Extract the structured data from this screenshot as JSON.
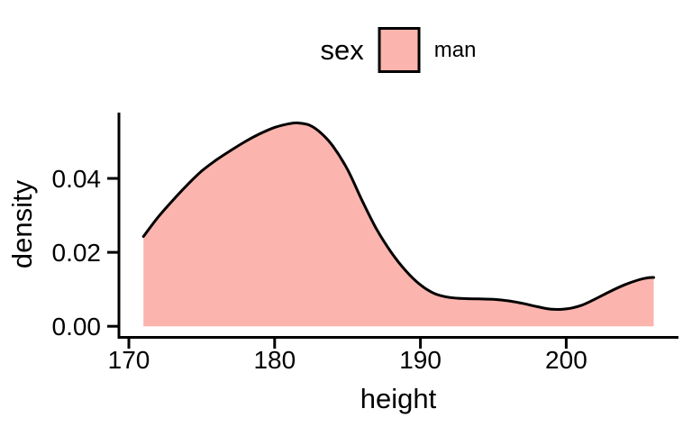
{
  "figure": {
    "background": "#ffffff",
    "axis_color": "#000000"
  },
  "chart_data": {
    "type": "area",
    "subtype": "density",
    "title": "",
    "xlabel": "height",
    "ylabel": "density",
    "grid": "off",
    "panel_background": "#ffffff",
    "legend": {
      "position": "top",
      "title": "sex",
      "entries": [
        {
          "label": "man",
          "fill": "#FBB4AE",
          "outline": "#000000"
        }
      ]
    },
    "x_ticks": [
      {
        "label": "170",
        "value": 170
      },
      {
        "label": "180",
        "value": 180
      },
      {
        "label": "190",
        "value": 190
      },
      {
        "label": "200",
        "value": 200
      }
    ],
    "y_ticks": [
      {
        "label": "0.00",
        "value": 0.0
      },
      {
        "label": "0.02",
        "value": 0.02
      },
      {
        "label": "0.04",
        "value": 0.04
      }
    ],
    "xlim": [
      169.32,
      207.7
    ],
    "ylim": [
      -0.003,
      0.0578
    ],
    "series": [
      {
        "name": "man",
        "line_color": "#000000",
        "fill_color": "#FBB4AE",
        "baseline": 0,
        "points": [
          [
            171.0,
            0.0243
          ],
          [
            172.0,
            0.0295
          ],
          [
            173.0,
            0.034
          ],
          [
            174.0,
            0.0382
          ],
          [
            175.0,
            0.042
          ],
          [
            176.0,
            0.045
          ],
          [
            177.0,
            0.0476
          ],
          [
            178.0,
            0.05
          ],
          [
            179.0,
            0.0521
          ],
          [
            180.0,
            0.0538
          ],
          [
            181.0,
            0.0548
          ],
          [
            181.6,
            0.055
          ],
          [
            182.4,
            0.0544
          ],
          [
            183.2,
            0.0522
          ],
          [
            184.0,
            0.0487
          ],
          [
            185.0,
            0.0424
          ],
          [
            186.0,
            0.034
          ],
          [
            187.0,
            0.0262
          ],
          [
            188.0,
            0.02
          ],
          [
            189.0,
            0.015
          ],
          [
            190.0,
            0.0112
          ],
          [
            191.0,
            0.0088
          ],
          [
            192.0,
            0.0078
          ],
          [
            193.0,
            0.0075
          ],
          [
            194.0,
            0.0074
          ],
          [
            195.0,
            0.0073
          ],
          [
            196.0,
            0.0069
          ],
          [
            197.0,
            0.0062
          ],
          [
            198.0,
            0.0053
          ],
          [
            199.0,
            0.0046
          ],
          [
            200.0,
            0.0047
          ],
          [
            201.0,
            0.0056
          ],
          [
            202.0,
            0.0074
          ],
          [
            203.0,
            0.0094
          ],
          [
            204.0,
            0.0112
          ],
          [
            205.0,
            0.0126
          ],
          [
            205.6,
            0.0131
          ],
          [
            206.0,
            0.0132
          ]
        ]
      }
    ]
  }
}
